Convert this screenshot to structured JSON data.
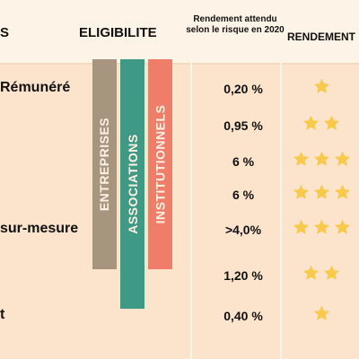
{
  "header": {
    "col1_title": "S",
    "col2_title": "ELIGIBILITE",
    "col3_title": "Rendement attendu selon le risque en 2020",
    "col4_title": "RENDEMENT"
  },
  "eligibility_bars": [
    {
      "label": "ENTREPRISES",
      "color": "#a89580"
    },
    {
      "label": "ASSOCIATIONS",
      "color": "#3e9a84"
    },
    {
      "label": "INSTITUTIONNELS",
      "color": "#f07c6a"
    }
  ],
  "rows": [
    {
      "label": "Rémunéré",
      "rate": "0,20 %",
      "stars": 1
    },
    {
      "label": "",
      "rate": "0,95 %",
      "stars": 2
    },
    {
      "label": "",
      "rate": "6 %",
      "stars": 3
    },
    {
      "label": "",
      "rate": "6 %",
      "stars": 3
    },
    {
      "label": "sur-mesure",
      "rate": ">4,0%",
      "stars": 3
    },
    {
      "label": "",
      "rate": "1,20 %",
      "stars": 2
    },
    {
      "label": "t",
      "rate": "0,40 %",
      "stars": 1
    }
  ],
  "colors": {
    "star": "#f8c94a",
    "background": "#fbe3cc",
    "header": "#fdf3e6"
  }
}
